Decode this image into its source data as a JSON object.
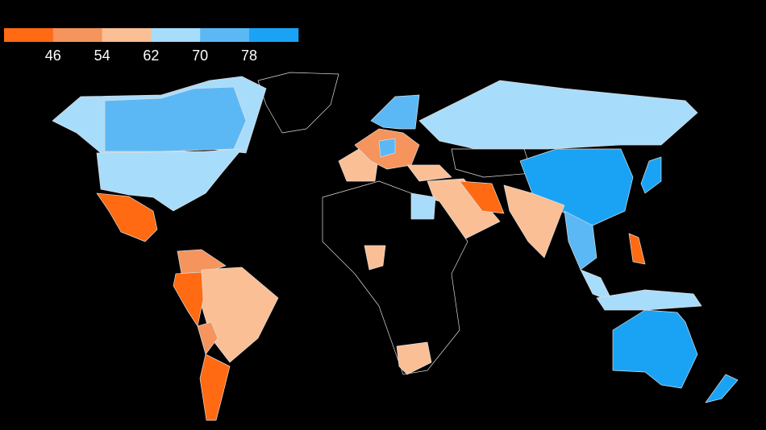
{
  "legend": {
    "colors": [
      "#ff6a13",
      "#f5945c",
      "#fbbf95",
      "#a8dcfb",
      "#5bb8f5",
      "#1aa3f5"
    ],
    "ticks": [
      46,
      54,
      62,
      70,
      78
    ]
  }
}
